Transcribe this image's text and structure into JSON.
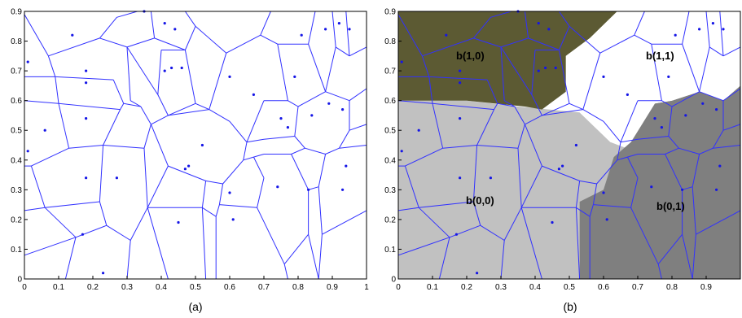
{
  "chart_data": [
    {
      "type": "scatter",
      "subtitle": "(a)",
      "xlim": [
        0,
        1
      ],
      "ylim": [
        0,
        0.9
      ],
      "xticks": [
        "0",
        "0.1",
        "0.2",
        "0.3",
        "0.4",
        "0.5",
        "0.6",
        "0.7",
        "0.8",
        "0.9",
        "1"
      ],
      "yticks": [
        "0",
        "0.1",
        "0.2",
        "0.3",
        "0.4",
        "0.5",
        "0.6",
        "0.7",
        "0.8",
        "0.9"
      ],
      "grid": false,
      "point_color": "#1515e6",
      "edge_color": "#3131ff",
      "points": [
        {
          "x": 0.01,
          "y": 0.73
        },
        {
          "x": 0.01,
          "y": 0.43
        },
        {
          "x": 0.06,
          "y": 0.5
        },
        {
          "x": 0.14,
          "y": 0.82
        },
        {
          "x": 0.18,
          "y": 0.7
        },
        {
          "x": 0.18,
          "y": 0.66
        },
        {
          "x": 0.18,
          "y": 0.54
        },
        {
          "x": 0.18,
          "y": 0.34
        },
        {
          "x": 0.17,
          "y": 0.15
        },
        {
          "x": 0.23,
          "y": 0.02
        },
        {
          "x": 0.27,
          "y": 0.34
        },
        {
          "x": 0.35,
          "y": 0.9
        },
        {
          "x": 0.41,
          "y": 0.86
        },
        {
          "x": 0.41,
          "y": 0.7
        },
        {
          "x": 0.43,
          "y": 0.71
        },
        {
          "x": 0.44,
          "y": 0.84
        },
        {
          "x": 0.45,
          "y": 0.19
        },
        {
          "x": 0.46,
          "y": 0.71
        },
        {
          "x": 0.47,
          "y": 0.37
        },
        {
          "x": 0.48,
          "y": 0.38
        },
        {
          "x": 0.52,
          "y": 0.45
        },
        {
          "x": 0.6,
          "y": 0.68
        },
        {
          "x": 0.6,
          "y": 0.29
        },
        {
          "x": 0.61,
          "y": 0.2
        },
        {
          "x": 0.67,
          "y": 0.62
        },
        {
          "x": 0.75,
          "y": 0.54
        },
        {
          "x": 0.74,
          "y": 0.31
        },
        {
          "x": 0.77,
          "y": 0.51
        },
        {
          "x": 0.79,
          "y": 0.68
        },
        {
          "x": 0.81,
          "y": 0.82
        },
        {
          "x": 0.83,
          "y": 0.3
        },
        {
          "x": 0.84,
          "y": 0.55
        },
        {
          "x": 0.88,
          "y": 0.84
        },
        {
          "x": 0.89,
          "y": 0.59
        },
        {
          "x": 0.92,
          "y": 0.86
        },
        {
          "x": 0.93,
          "y": 0.57
        },
        {
          "x": 0.93,
          "y": 0.3
        },
        {
          "x": 0.94,
          "y": 0.38
        },
        {
          "x": 0.95,
          "y": 0.84
        }
      ]
    },
    {
      "type": "scatter",
      "subtitle": "(b)",
      "xlim": [
        0,
        1
      ],
      "ylim": [
        0,
        0.9
      ],
      "xticks": [
        "0",
        "0.1",
        "0.2",
        "0.3",
        "0.4",
        "0.5",
        "0.6",
        "0.7",
        "0.8",
        "0.9"
      ],
      "yticks": [
        "0",
        "0.1",
        "0.2",
        "0.3",
        "0.4",
        "0.5",
        "0.6",
        "0.7",
        "0.8",
        "0.9"
      ],
      "grid": false,
      "regions": [
        {
          "label": "b(1,0)",
          "color": "#5c5a33"
        },
        {
          "label": "b(1,1)",
          "color": "#ffffff"
        },
        {
          "label": "b(0,0)",
          "color": "#c1c1c1"
        },
        {
          "label": "b(0,1)",
          "color": "#7f7f7f"
        }
      ]
    }
  ]
}
